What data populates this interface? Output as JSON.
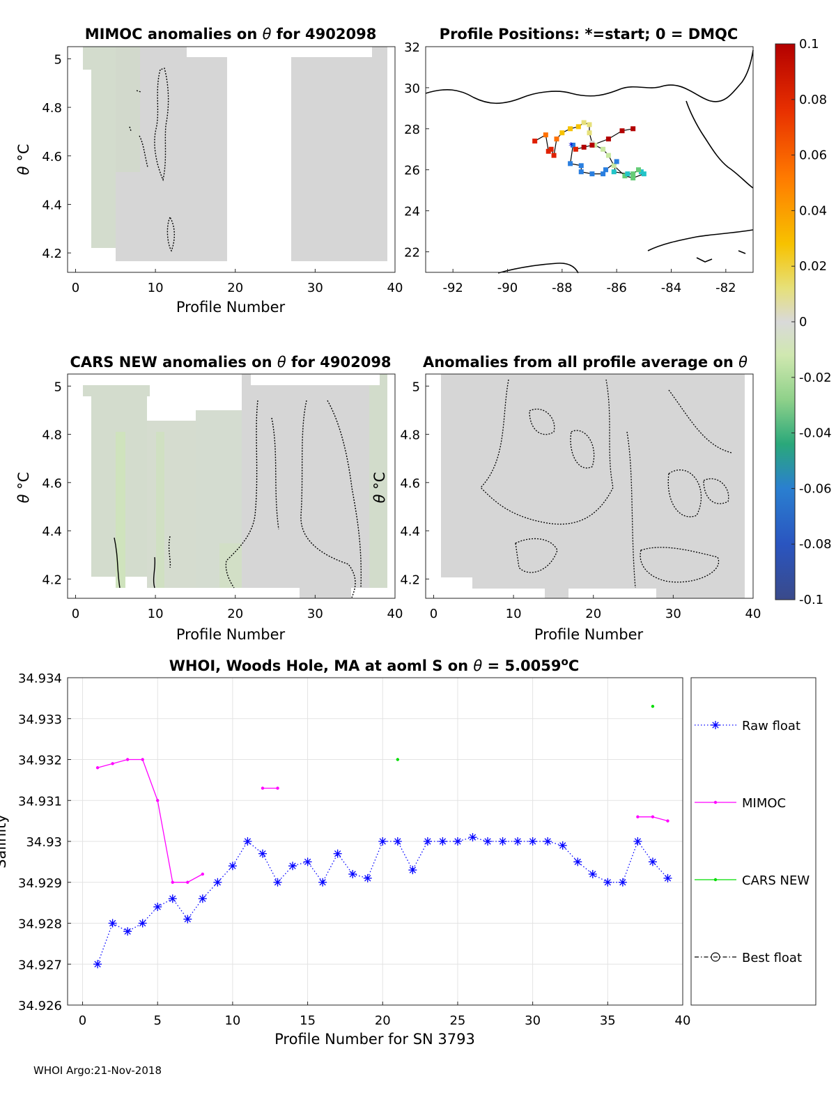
{
  "footer": "WHOI Argo:21-Nov-2018",
  "colors": {
    "raw_float": "#0000ff",
    "mimoc": "#ff00ff",
    "cars_new": "#00dd00",
    "best_float": "#000000",
    "field_gray": "#d6d6d6",
    "field_green": "#d2e0c8"
  },
  "colormap": {
    "ticks": [
      "0.1",
      "0.08",
      "0.06",
      "0.04",
      "0.02",
      "0",
      "-0.02",
      "-0.04",
      "-0.06",
      "-0.08",
      "-0.1"
    ],
    "values": [
      0.1,
      0.08,
      0.06,
      0.04,
      0.02,
      0,
      -0.02,
      -0.04,
      -0.06,
      -0.08,
      -0.1
    ]
  },
  "chart_data": [
    {
      "type": "heatmap",
      "id": "mimoc",
      "title_pre": "MIMOC anomalies on ",
      "title_post": "  for 4902098",
      "xlabel": "Profile Number",
      "ylabel_sym": "θ",
      "ylabel_unit": " °C",
      "xticks": [
        "0",
        "10",
        "20",
        "30",
        "40"
      ],
      "xtick_values": [
        0,
        10,
        20,
        30,
        40
      ],
      "yticks": [
        "5",
        "4.8",
        "4.6",
        "4.4",
        "4.2"
      ],
      "ytick_values": [
        5,
        4.8,
        4.6,
        4.4,
        4.2
      ],
      "xlim": [
        -1,
        40
      ],
      "ylim": [
        4.12,
        5.05
      ]
    },
    {
      "type": "scatter",
      "id": "positions",
      "title": "Profile Positions: *=start; 0 = DMQC",
      "xticks": [
        "-92",
        "-90",
        "-88",
        "-86",
        "-84",
        "-82"
      ],
      "xtick_values": [
        -92,
        -90,
        -88,
        -86,
        -84,
        -82
      ],
      "yticks": [
        "32",
        "30",
        "28",
        "26",
        "24",
        "22"
      ],
      "ytick_values": [
        32,
        30,
        28,
        26,
        24,
        22
      ],
      "xlim": [
        -93,
        -81
      ],
      "ylim": [
        21,
        32
      ],
      "lon": [
        -89.0,
        -88.6,
        -88.5,
        -88.4,
        -88.3,
        -88.2,
        -88.0,
        -87.7,
        -87.4,
        -87.2,
        -87.0,
        -87.0,
        -86.9,
        -86.8,
        -86.5,
        -86.3,
        -86.1,
        -85.7,
        -85.4,
        -85.0,
        -85.1,
        -85.2,
        -85.4,
        -85.6,
        -86.1,
        -86.0,
        -86.4,
        -86.5,
        -86.9,
        -87.3,
        -87.3,
        -87.7,
        -87.6,
        -87.5,
        -87.2,
        -86.9,
        -86.3,
        -85.8,
        -85.4
      ],
      "lat": [
        27.4,
        27.7,
        26.9,
        27.0,
        26.7,
        27.5,
        27.8,
        28.0,
        28.1,
        28.3,
        28.2,
        27.8,
        27.3,
        27.2,
        27.0,
        26.7,
        26.2,
        25.7,
        25.6,
        25.8,
        25.9,
        26.0,
        25.8,
        25.8,
        25.9,
        26.4,
        26.0,
        25.8,
        25.8,
        25.9,
        26.2,
        26.3,
        27.2,
        27.0,
        27.1,
        27.2,
        27.5,
        27.9,
        28.0
      ],
      "anomaly": [
        0.07,
        0.06,
        0.08,
        0.08,
        0.075,
        0.05,
        0.045,
        0.04,
        0.035,
        0.03,
        0.03,
        0.025,
        -0.01,
        -0.015,
        -0.02,
        -0.025,
        -0.03,
        -0.035,
        -0.045,
        -0.05,
        -0.05,
        -0.045,
        -0.045,
        -0.05,
        -0.06,
        -0.07,
        -0.075,
        -0.08,
        -0.08,
        -0.08,
        -0.075,
        -0.085,
        -0.09,
        0.09,
        0.095,
        0.1,
        0.1,
        0.1,
        0.1
      ]
    },
    {
      "type": "heatmap",
      "id": "cars",
      "title_pre": "CARS NEW anomalies on ",
      "title_post": " for 4902098",
      "xlabel": "Profile Number",
      "ylabel_sym": "θ",
      "ylabel_unit": " °C",
      "xticks": [
        "0",
        "10",
        "20",
        "30",
        "40"
      ],
      "xtick_values": [
        0,
        10,
        20,
        30,
        40
      ],
      "yticks": [
        "5",
        "4.8",
        "4.6",
        "4.4",
        "4.2"
      ],
      "ytick_values": [
        5,
        4.8,
        4.6,
        4.4,
        4.2
      ],
      "xlim": [
        -1,
        40
      ],
      "ylim": [
        4.12,
        5.05
      ]
    },
    {
      "type": "heatmap",
      "id": "allavg",
      "title_pre": "Anomalies from all profile average on ",
      "title_post": "",
      "xlabel": "Profile Number",
      "ylabel_sym": "θ",
      "ylabel_unit": " °C",
      "xticks": [
        "0",
        "10",
        "20",
        "30",
        "40"
      ],
      "xtick_values": [
        0,
        10,
        20,
        30,
        40
      ],
      "yticks": [
        "5",
        "4.8",
        "4.6",
        "4.4",
        "4.2"
      ],
      "ytick_values": [
        5,
        4.8,
        4.6,
        4.4,
        4.2
      ],
      "xlim": [
        -1,
        40
      ],
      "ylim": [
        4.12,
        5.05
      ]
    },
    {
      "type": "line",
      "id": "salinity",
      "title_pre": "WHOI, Woods Hole, MA at aoml S on ",
      "title_mid": " = 5.0059",
      "title_sup": "o",
      "title_post": "C",
      "xlabel": "Profile Number for SN 3793",
      "ylabel": "Salinity",
      "xticks": [
        "0",
        "5",
        "10",
        "15",
        "20",
        "25",
        "30",
        "35",
        "40"
      ],
      "xtick_values": [
        0,
        5,
        10,
        15,
        20,
        25,
        30,
        35,
        40
      ],
      "yticks": [
        "34.934",
        "34.933",
        "34.932",
        "34.931",
        "34.93",
        "34.929",
        "34.928",
        "34.927",
        "34.926"
      ],
      "ytick_values": [
        34.934,
        34.933,
        34.932,
        34.931,
        34.93,
        34.929,
        34.928,
        34.927,
        34.926
      ],
      "xlim": [
        -1,
        40
      ],
      "ylim": [
        34.926,
        34.934
      ],
      "grid": true,
      "legend_position": "right",
      "series": [
        {
          "name": "Raw float",
          "marker": "asterisk",
          "line": "dotted",
          "x": [
            1,
            2,
            3,
            4,
            5,
            6,
            7,
            8,
            9,
            10,
            11,
            12,
            13,
            14,
            15,
            16,
            17,
            18,
            19,
            20,
            21,
            22,
            23,
            24,
            25,
            26,
            27,
            28,
            29,
            30,
            31,
            32,
            33,
            34,
            35,
            36,
            37,
            38,
            39
          ],
          "y": [
            34.927,
            34.928,
            34.9278,
            34.928,
            34.9284,
            34.9286,
            34.9281,
            34.9286,
            34.929,
            34.9294,
            34.93,
            34.9297,
            34.929,
            34.9294,
            34.9295,
            34.929,
            34.9297,
            34.9292,
            34.9291,
            34.93,
            34.93,
            34.9293,
            34.93,
            34.93,
            34.93,
            34.9301,
            34.93,
            34.93,
            34.93,
            34.93,
            34.93,
            34.9299,
            34.9295,
            34.9292,
            34.929,
            34.929,
            34.93,
            34.9295,
            34.9291
          ]
        },
        {
          "name": "MIMOC",
          "marker": "dot",
          "line": "solid",
          "segments": [
            {
              "x": [
                1,
                2,
                3,
                4,
                5,
                6,
                7,
                8
              ],
              "y": [
                34.9318,
                34.9319,
                34.932,
                34.932,
                34.931,
                34.929,
                34.929,
                34.9292
              ]
            },
            {
              "x": [
                12,
                13
              ],
              "y": [
                34.9313,
                34.9313
              ]
            },
            {
              "x": [
                37,
                38,
                39
              ],
              "y": [
                34.9306,
                34.9306,
                34.9305
              ]
            }
          ]
        },
        {
          "name": "CARS NEW",
          "marker": "dot",
          "line": "solid",
          "segments": [
            {
              "x": [
                21
              ],
              "y": [
                34.932
              ]
            },
            {
              "x": [
                38
              ],
              "y": [
                34.9333
              ]
            }
          ]
        },
        {
          "name": "Best float",
          "marker": "circle",
          "line": "dashdot",
          "segments": []
        }
      ]
    }
  ]
}
